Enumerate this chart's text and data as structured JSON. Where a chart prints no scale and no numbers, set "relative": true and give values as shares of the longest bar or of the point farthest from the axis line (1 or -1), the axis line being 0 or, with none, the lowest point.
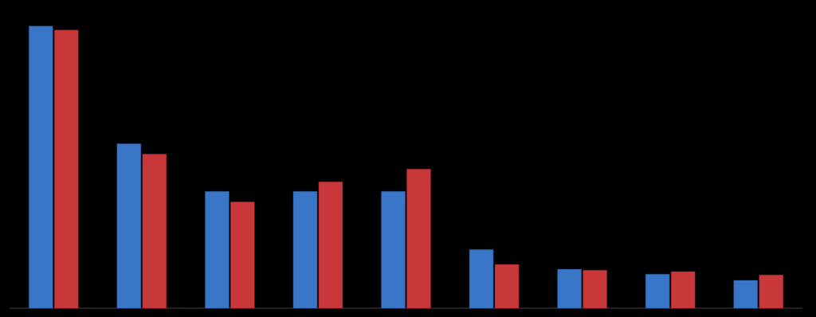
{
  "chart_data": {
    "type": "bar",
    "relative": true,
    "categories": [
      null,
      null,
      null,
      null,
      null,
      null,
      null,
      null,
      null
    ],
    "series": [
      {
        "color": "#3a76c8",
        "values": [
          1,
          0.583,
          0.414,
          0.414,
          0.414,
          0.208,
          0.138,
          0.121,
          0.099
        ]
      },
      {
        "color": "#c8383a",
        "values": [
          0.986,
          0.546,
          0.377,
          0.448,
          0.493,
          0.155,
          0.135,
          0.13,
          0.118
        ]
      }
    ]
  }
}
